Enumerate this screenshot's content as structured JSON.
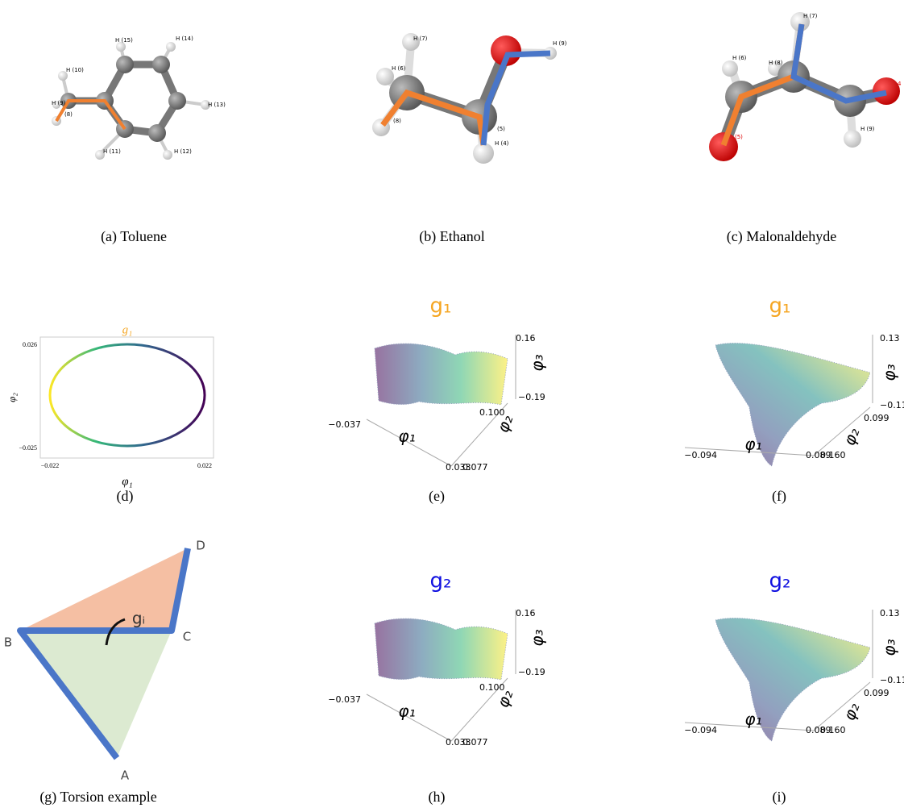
{
  "panels": [
    {
      "caption": "(a) Toluene",
      "atoms": [
        "H (15)",
        "H (14)",
        "H (10)",
        "H (9)",
        "(8)",
        "H (13)",
        "H (11)",
        "H (12)"
      ]
    },
    {
      "caption": "(b) Ethanol",
      "atoms": [
        "H (7)",
        "H (6)",
        "(8)",
        "(5)",
        "H (4)",
        "H (9)"
      ]
    },
    {
      "caption": "(c) Malonaldehyde",
      "atoms": [
        "H (7)",
        "H (6)",
        "H (8)",
        "(5)",
        "4",
        "H (9)"
      ]
    },
    {
      "caption": "(d)",
      "title": "g₁",
      "xlabel": "φ₁",
      "ylabel": "φ₂",
      "xticks": [
        "−0.022",
        "0.022"
      ],
      "yticks": [
        "0.026",
        "−0.025"
      ]
    },
    {
      "caption": "(e)",
      "title": "g₁",
      "axis_labels": [
        "φ₁",
        "φ₂",
        "φ₃"
      ],
      "ticks": [
        "−0.037",
        "0.033",
        "0.077",
        "0.100",
        "−0.19",
        "0.16"
      ]
    },
    {
      "caption": "(f)",
      "title": "g₁",
      "axis_labels": [
        "φ₁",
        "φ₂",
        "φ₃"
      ],
      "ticks": [
        "−0.094",
        "0.089",
        "0.160",
        "0.099",
        "−0.11",
        "0.13"
      ]
    },
    {
      "caption": "(g) Torsion example",
      "labels": [
        "A",
        "B",
        "C",
        "D",
        "gᵢ"
      ]
    },
    {
      "caption": "(h)",
      "title": "g₂",
      "axis_labels": [
        "φ₁",
        "φ₂",
        "φ₃"
      ],
      "ticks": [
        "−0.037",
        "0.033",
        "0.077",
        "0.100",
        "−0.19",
        "0.16"
      ]
    },
    {
      "caption": "(i)",
      "title": "g₂",
      "axis_labels": [
        "φ₁",
        "φ₂",
        "φ₃"
      ],
      "ticks": [
        "−0.094",
        "0.089",
        "0.160",
        "0.099",
        "−0.11",
        "0.13"
      ]
    }
  ]
}
